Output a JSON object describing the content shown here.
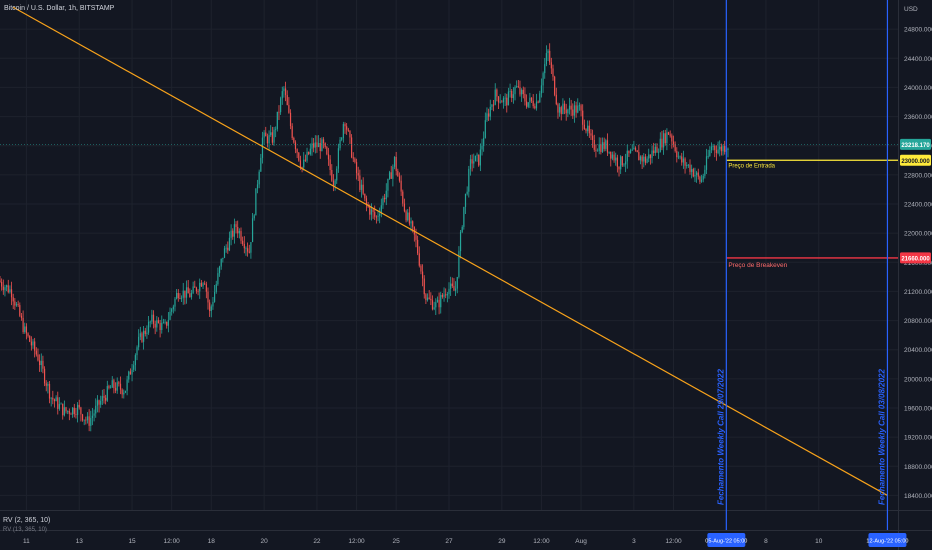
{
  "header": {
    "symbol_title": "Bitcoin / U.S. Dollar, 1h, BITSTAMP"
  },
  "indicator": {
    "label": "RV (2, 365, 10)",
    "sublabel": "RV (13, 365, 10)"
  },
  "colors": {
    "background": "#131722",
    "grid": "#1e222d",
    "up": "#26a69a",
    "down": "#ef5350",
    "trendline": "#f7a21b",
    "vline": "#2962ff",
    "entry": "#ffeb3b",
    "breakeven": "#f23645",
    "price_tag": "#26a69a",
    "axis_text": "#b2b5be",
    "vline_text": "#2962ff"
  },
  "chart_data": {
    "type": "candlestick",
    "title": "Bitcoin / U.S. Dollar, 1h, BITSTAMP",
    "currency": "USD",
    "ylim": [
      18200,
      25200
    ],
    "y_ticks": [
      "24800.000",
      "24400.000",
      "24000.000",
      "23600.000",
      "23200.000",
      "22800.000",
      "22400.000",
      "22000.000",
      "21600.000",
      "21200.000",
      "20800.000",
      "20400.000",
      "20000.000",
      "19600.000",
      "19200.000",
      "18800.000",
      "18400.000"
    ],
    "x_ticks": [
      "11",
      "13",
      "15",
      "12:00",
      "18",
      "20",
      "22",
      "12:00",
      "25",
      "27",
      "29",
      "12:00",
      "Aug",
      "3",
      "12:00",
      "8",
      "10"
    ],
    "x_tick_positions": [
      11,
      13,
      15,
      16.5,
      18,
      20,
      22,
      23.5,
      25,
      27,
      29,
      30.5,
      32,
      34,
      35.5,
      39,
      41
    ],
    "x_range": [
      10,
      44
    ],
    "price_points": [
      [
        10.0,
        21350
      ],
      [
        10.5,
        21200
      ],
      [
        11.0,
        20650
      ],
      [
        11.5,
        20300
      ],
      [
        12.0,
        19750
      ],
      [
        12.5,
        19550
      ],
      [
        13.0,
        19600
      ],
      [
        13.4,
        19400
      ],
      [
        13.8,
        19650
      ],
      [
        14.3,
        19900
      ],
      [
        14.8,
        19850
      ],
      [
        15.3,
        20500
      ],
      [
        15.8,
        20800
      ],
      [
        16.3,
        20700
      ],
      [
        16.8,
        21200
      ],
      [
        17.3,
        21150
      ],
      [
        17.8,
        21400
      ],
      [
        18.0,
        20900
      ],
      [
        18.5,
        21700
      ],
      [
        19.0,
        22100
      ],
      [
        19.5,
        21750
      ],
      [
        20.0,
        23300
      ],
      [
        20.4,
        23300
      ],
      [
        20.8,
        24000
      ],
      [
        21.1,
        23400
      ],
      [
        21.5,
        22900
      ],
      [
        21.9,
        23200
      ],
      [
        22.3,
        23200
      ],
      [
        22.7,
        22700
      ],
      [
        23.1,
        23600
      ],
      [
        23.5,
        22900
      ],
      [
        23.9,
        22400
      ],
      [
        24.3,
        22200
      ],
      [
        24.7,
        22600
      ],
      [
        25.0,
        23000
      ],
      [
        25.4,
        22300
      ],
      [
        25.8,
        21900
      ],
      [
        26.2,
        21100
      ],
      [
        26.6,
        21000
      ],
      [
        27.0,
        21250
      ],
      [
        27.3,
        21200
      ],
      [
        27.6,
        22300
      ],
      [
        27.9,
        23000
      ],
      [
        28.2,
        23000
      ],
      [
        28.5,
        23600
      ],
      [
        28.8,
        23900
      ],
      [
        29.2,
        23800
      ],
      [
        29.6,
        24000
      ],
      [
        30.0,
        23800
      ],
      [
        30.4,
        23800
      ],
      [
        30.8,
        24500
      ],
      [
        31.2,
        23700
      ],
      [
        31.6,
        23700
      ],
      [
        32.0,
        23700
      ],
      [
        32.5,
        23200
      ],
      [
        33.0,
        23200
      ],
      [
        33.5,
        22950
      ],
      [
        34.0,
        23100
      ],
      [
        34.5,
        23000
      ],
      [
        35.0,
        23200
      ],
      [
        35.4,
        23400
      ],
      [
        35.8,
        23000
      ],
      [
        36.2,
        22900
      ],
      [
        36.6,
        22700
      ],
      [
        37.0,
        23200
      ],
      [
        37.3,
        23150
      ],
      [
        37.6,
        23210
      ]
    ],
    "last_price": "23218.170",
    "entry_price": "23000.000",
    "entry_label": "Preço de Entrada",
    "breakeven_price": "21660.000",
    "breakeven_label": "Preço de Breakeven",
    "trendline": {
      "from": [
        10.5,
        25100
      ],
      "to": [
        43.6,
        18400
      ]
    },
    "vertical_lines": [
      {
        "x": 37.5,
        "text": "Fechamento Weekly Call 29/07/2022",
        "date_label": "05-Aug-'22",
        "time_label": "05:00"
      },
      {
        "x": 43.6,
        "text": "Fechamento Weekly Call 03/08/2022",
        "date_label": "12-Aug-'22",
        "time_label": "05:00"
      }
    ]
  }
}
